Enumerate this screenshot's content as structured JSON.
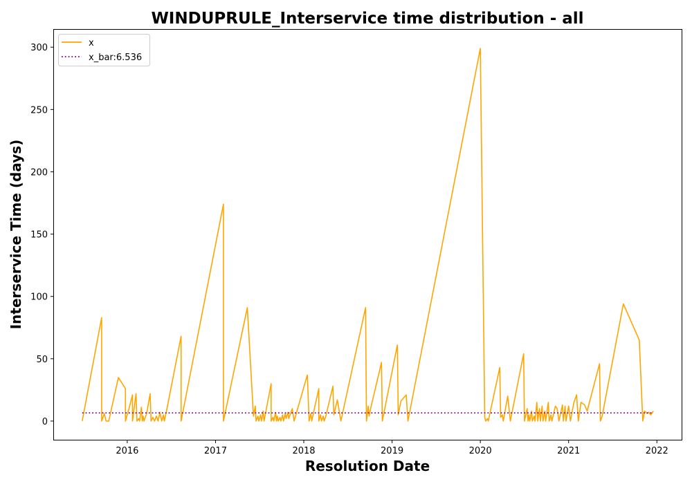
{
  "chart_data": {
    "type": "line",
    "title": "WINDUPRULE_Interservice time distribution - all",
    "xlabel": "Resolution Date",
    "ylabel": "Interservice Time (days)",
    "xlim": [
      2015.17,
      2022.28
    ],
    "ylim": [
      -15,
      314
    ],
    "x_ticks": [
      2016,
      2017,
      2018,
      2019,
      2020,
      2021,
      2022
    ],
    "y_ticks": [
      0,
      50,
      100,
      150,
      200,
      250,
      300
    ],
    "legend_position": "top-left",
    "grid": false,
    "series": [
      {
        "name": "x",
        "color": "#FFA500",
        "style": "solid",
        "points": [
          [
            2015.49,
            0
          ],
          [
            2015.71,
            83
          ],
          [
            2015.71,
            0
          ],
          [
            2015.74,
            6
          ],
          [
            2015.76,
            0
          ],
          [
            2015.79,
            0
          ],
          [
            2015.9,
            35
          ],
          [
            2015.98,
            26
          ],
          [
            2015.98,
            0
          ],
          [
            2016.02,
            10
          ],
          [
            2016.06,
            21
          ],
          [
            2016.06,
            0
          ],
          [
            2016.1,
            22
          ],
          [
            2016.11,
            0
          ],
          [
            2016.13,
            2
          ],
          [
            2016.14,
            0
          ],
          [
            2016.16,
            11
          ],
          [
            2016.17,
            0
          ],
          [
            2016.18,
            4
          ],
          [
            2016.19,
            0
          ],
          [
            2016.22,
            6
          ],
          [
            2016.26,
            22
          ],
          [
            2016.27,
            0
          ],
          [
            2016.29,
            3
          ],
          [
            2016.31,
            0
          ],
          [
            2016.33,
            4
          ],
          [
            2016.35,
            0
          ],
          [
            2016.37,
            7
          ],
          [
            2016.39,
            0
          ],
          [
            2016.41,
            5
          ],
          [
            2016.42,
            0
          ],
          [
            2016.45,
            10
          ],
          [
            2016.61,
            68
          ],
          [
            2016.61,
            0
          ],
          [
            2017.09,
            174
          ],
          [
            2017.09,
            0
          ],
          [
            2017.36,
            91
          ],
          [
            2017.43,
            4
          ],
          [
            2017.45,
            12
          ],
          [
            2017.46,
            0
          ],
          [
            2017.48,
            4
          ],
          [
            2017.49,
            0
          ],
          [
            2017.51,
            5
          ],
          [
            2017.52,
            0
          ],
          [
            2017.54,
            8
          ],
          [
            2017.55,
            0
          ],
          [
            2017.63,
            30
          ],
          [
            2017.63,
            0
          ],
          [
            2017.65,
            3
          ],
          [
            2017.66,
            0
          ],
          [
            2017.68,
            7
          ],
          [
            2017.69,
            0
          ],
          [
            2017.7,
            4
          ],
          [
            2017.71,
            0
          ],
          [
            2017.73,
            3
          ],
          [
            2017.74,
            0
          ],
          [
            2017.76,
            5
          ],
          [
            2017.77,
            0
          ],
          [
            2017.79,
            6
          ],
          [
            2017.8,
            2
          ],
          [
            2017.82,
            7
          ],
          [
            2017.83,
            2
          ],
          [
            2017.87,
            10
          ],
          [
            2017.89,
            0
          ],
          [
            2018.04,
            37
          ],
          [
            2018.06,
            0
          ],
          [
            2018.08,
            6
          ],
          [
            2018.09,
            0
          ],
          [
            2018.12,
            10
          ],
          [
            2018.17,
            26
          ],
          [
            2018.17,
            0
          ],
          [
            2018.19,
            5
          ],
          [
            2018.2,
            0
          ],
          [
            2018.22,
            4
          ],
          [
            2018.23,
            0
          ],
          [
            2018.25,
            4
          ],
          [
            2018.33,
            28
          ],
          [
            2018.34,
            5
          ],
          [
            2018.38,
            17
          ],
          [
            2018.42,
            0
          ],
          [
            2018.7,
            91
          ],
          [
            2018.71,
            0
          ],
          [
            2018.73,
            12
          ],
          [
            2018.74,
            4
          ],
          [
            2018.76,
            11
          ],
          [
            2018.88,
            47
          ],
          [
            2018.89,
            0
          ],
          [
            2019.06,
            61
          ],
          [
            2019.07,
            5
          ],
          [
            2019.1,
            16
          ],
          [
            2019.16,
            21
          ],
          [
            2019.18,
            0
          ],
          [
            2020.0,
            299
          ],
          [
            2020.05,
            3
          ],
          [
            2020.06,
            0
          ],
          [
            2020.08,
            2
          ],
          [
            2020.09,
            0
          ],
          [
            2020.22,
            43
          ],
          [
            2020.23,
            3
          ],
          [
            2020.25,
            5
          ],
          [
            2020.26,
            0
          ],
          [
            2020.31,
            20
          ],
          [
            2020.34,
            0
          ],
          [
            2020.49,
            54
          ],
          [
            2020.5,
            0
          ],
          [
            2020.53,
            10
          ],
          [
            2020.54,
            0
          ],
          [
            2020.55,
            5
          ],
          [
            2020.56,
            0
          ],
          [
            2020.58,
            8
          ],
          [
            2020.59,
            0
          ],
          [
            2020.61,
            4
          ],
          [
            2020.62,
            0
          ],
          [
            2020.64,
            15
          ],
          [
            2020.65,
            0
          ],
          [
            2020.67,
            10
          ],
          [
            2020.68,
            0
          ],
          [
            2020.7,
            12
          ],
          [
            2020.71,
            0
          ],
          [
            2020.73,
            8
          ],
          [
            2020.74,
            0
          ],
          [
            2020.77,
            15
          ],
          [
            2020.78,
            0
          ],
          [
            2020.8,
            5
          ],
          [
            2020.81,
            0
          ],
          [
            2020.85,
            12
          ],
          [
            2020.87,
            10
          ],
          [
            2020.89,
            0
          ],
          [
            2020.93,
            13
          ],
          [
            2020.94,
            0
          ],
          [
            2020.96,
            12
          ],
          [
            2020.97,
            0
          ],
          [
            2021.0,
            12
          ],
          [
            2021.02,
            0
          ],
          [
            2021.06,
            15
          ],
          [
            2021.09,
            21
          ],
          [
            2021.11,
            0
          ],
          [
            2021.14,
            15
          ],
          [
            2021.18,
            13
          ],
          [
            2021.21,
            8
          ],
          [
            2021.35,
            46
          ],
          [
            2021.36,
            0
          ],
          [
            2021.38,
            4
          ],
          [
            2021.62,
            94
          ],
          [
            2021.8,
            65
          ],
          [
            2021.84,
            0
          ],
          [
            2021.86,
            8
          ],
          [
            2021.89,
            6
          ],
          [
            2021.91,
            7
          ],
          [
            2021.93,
            5
          ],
          [
            2021.96,
            8
          ]
        ]
      },
      {
        "name": "x_bar:6.536",
        "color": "#800080",
        "style": "dotted",
        "points": [
          [
            2015.49,
            6.536
          ],
          [
            2021.96,
            6.536
          ]
        ]
      }
    ]
  }
}
